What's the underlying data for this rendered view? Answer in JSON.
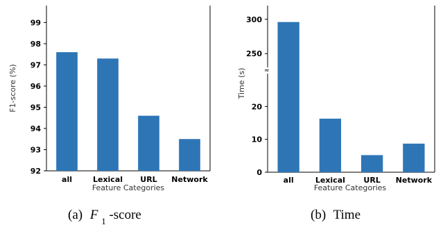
{
  "chart_data": [
    {
      "type": "bar",
      "categories": [
        "all",
        "Lexical",
        "URL",
        "Network"
      ],
      "values": [
        97.6,
        97.3,
        94.6,
        93.5
      ],
      "color": "#2e75b6",
      "title": "",
      "xlabel": "Feature Categories",
      "ylabel": "F1-score (%)",
      "ylim": [
        92,
        99.8
      ],
      "yticks": [
        92,
        93,
        94,
        95,
        96,
        97,
        98,
        99
      ],
      "caption_label": "(a)",
      "caption_text": "-score",
      "caption_symbol": "F",
      "caption_sub": "1",
      "grid": false
    },
    {
      "type": "bar",
      "categories": [
        "all",
        "Lexical",
        "URL",
        "Network"
      ],
      "values": [
        296,
        16.3,
        5.2,
        8.7
      ],
      "color": "#2e75b6",
      "title": "",
      "xlabel": "Feature Categories",
      "ylabel": "Time (s)",
      "broken_axis": true,
      "lower_range": [
        0,
        30
      ],
      "upper_range": [
        230,
        320
      ],
      "yticks_lower": [
        0,
        10,
        20
      ],
      "yticks_upper": [
        250,
        300
      ],
      "caption_label": "(b)",
      "caption_text": "Time",
      "grid": false
    }
  ]
}
